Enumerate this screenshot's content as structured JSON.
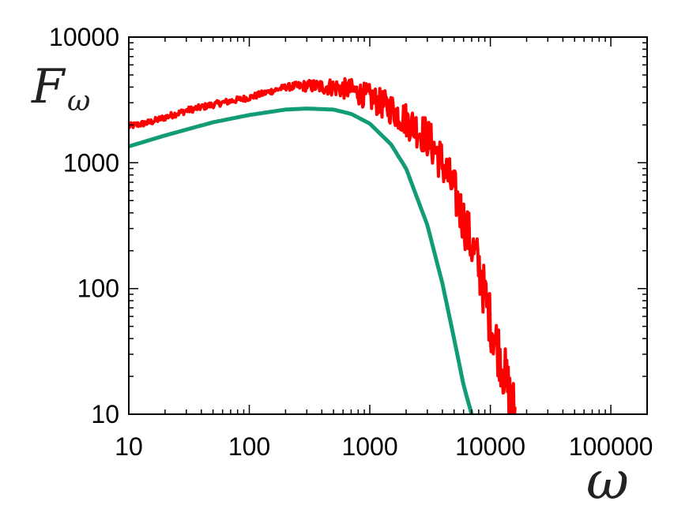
{
  "chart_data": {
    "type": "line",
    "title": "",
    "xlabel": "ω",
    "ylabel": "F",
    "ylabel_sub": "ω",
    "x_scale": "log",
    "y_scale": "log",
    "xlim": [
      10,
      200000
    ],
    "ylim": [
      10,
      10000
    ],
    "x_ticks": [
      10,
      100,
      1000,
      10000,
      100000
    ],
    "x_tick_labels": [
      "10",
      "100",
      "1000",
      "10000",
      "100000"
    ],
    "y_ticks": [
      10,
      100,
      1000,
      10000
    ],
    "y_tick_labels": [
      "10",
      "100",
      "1000",
      "10000"
    ],
    "grid": false,
    "series": [
      {
        "color": "#ff0000",
        "style": "noisy",
        "x": [
          10,
          15,
          20,
          30,
          50,
          70,
          100,
          150,
          200,
          300,
          500,
          700,
          1000,
          1500,
          2000,
          3000,
          4000,
          5000,
          6000,
          8000,
          10000,
          12000,
          14000,
          16000
        ],
        "y": [
          1950,
          2100,
          2300,
          2600,
          2900,
          3100,
          3300,
          3700,
          4000,
          4100,
          4000,
          3800,
          3300,
          2700,
          2200,
          1600,
          1000,
          600,
          350,
          150,
          55,
          30,
          16,
          10
        ]
      },
      {
        "color": "#119c75",
        "style": "smooth",
        "x": [
          10,
          20,
          50,
          100,
          200,
          300,
          500,
          700,
          1000,
          1500,
          2000,
          3000,
          4000,
          5000,
          6000,
          7000
        ],
        "y": [
          1350,
          1650,
          2100,
          2400,
          2650,
          2700,
          2650,
          2450,
          2050,
          1400,
          900,
          320,
          110,
          40,
          17,
          10
        ]
      }
    ]
  }
}
